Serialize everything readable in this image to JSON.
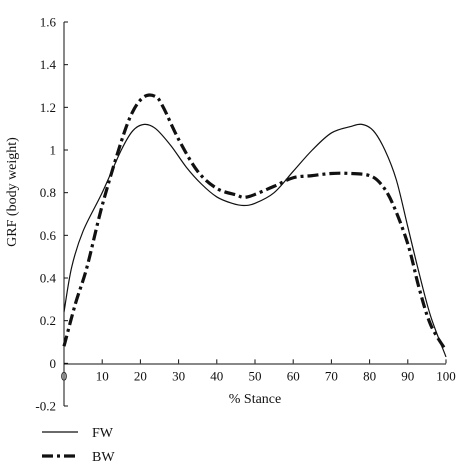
{
  "chart_data": {
    "type": "line",
    "title": "",
    "xlabel": "% Stance",
    "ylabel": "GRF (body weight)",
    "xlim": [
      0,
      100
    ],
    "ylim": [
      -0.2,
      1.6
    ],
    "x_ticks": [
      "0",
      "10",
      "20",
      "30",
      "40",
      "50",
      "60",
      "70",
      "80",
      "90",
      "100"
    ],
    "y_ticks": [
      "-0.2",
      "0",
      "0.2",
      "0.4",
      "0.6",
      "0.8",
      "1",
      "1.2",
      "1.4",
      "1.6"
    ],
    "grid": false,
    "legend_position": "bottom-left",
    "series": [
      {
        "name": "FW",
        "style": "solid",
        "color": "#111111",
        "x": [
          0,
          2,
          5,
          10,
          15,
          18,
          21,
          24,
          28,
          32,
          36,
          40,
          44,
          47,
          50,
          55,
          60,
          65,
          70,
          75,
          78,
          81,
          84,
          87,
          90,
          93,
          96,
          100
        ],
        "y": [
          0.24,
          0.45,
          0.62,
          0.8,
          1.0,
          1.09,
          1.12,
          1.1,
          1.02,
          0.92,
          0.84,
          0.78,
          0.75,
          0.74,
          0.75,
          0.8,
          0.9,
          1.0,
          1.08,
          1.11,
          1.12,
          1.09,
          1.0,
          0.86,
          0.64,
          0.42,
          0.22,
          0.03
        ]
      },
      {
        "name": "BW",
        "style": "dash-dot",
        "color": "#111111",
        "x": [
          0,
          3,
          6,
          10,
          15,
          18,
          21,
          24,
          26,
          30,
          35,
          40,
          45,
          48,
          55,
          60,
          65,
          70,
          75,
          80,
          83,
          86,
          90,
          93,
          96,
          100
        ],
        "y": [
          0.08,
          0.28,
          0.45,
          0.74,
          1.04,
          1.18,
          1.25,
          1.25,
          1.2,
          1.05,
          0.9,
          0.82,
          0.79,
          0.78,
          0.83,
          0.87,
          0.88,
          0.89,
          0.89,
          0.88,
          0.84,
          0.75,
          0.56,
          0.35,
          0.18,
          0.06
        ]
      }
    ]
  }
}
